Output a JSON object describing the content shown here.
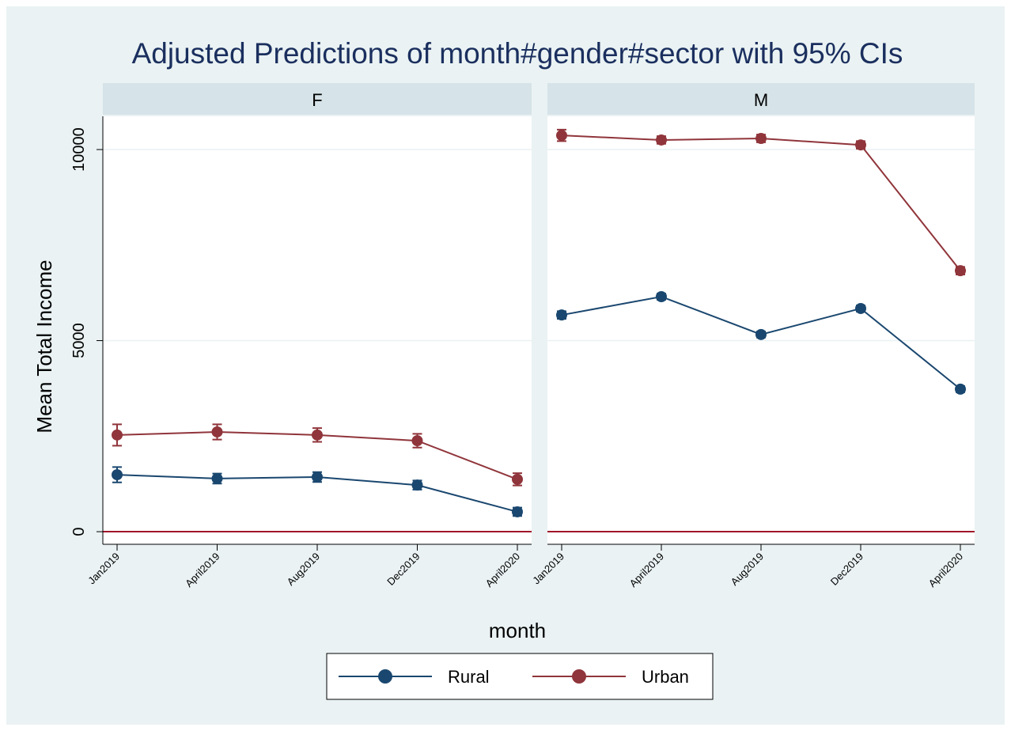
{
  "chart_data": {
    "type": "line",
    "title": "Adjusted Predictions of month#gender#sector with 95% CIs",
    "xlabel": "month",
    "ylabel": "Mean Total Income",
    "panels": [
      "F",
      "M"
    ],
    "categories": [
      "Jan2019",
      "April2019",
      "Aug2019",
      "Dec2019",
      "April2020"
    ],
    "series": [
      {
        "name": "Rural",
        "color": "#1a476f",
        "values": [
          [
            1490,
            1390,
            1430,
            1220,
            520
          ],
          [
            5670,
            6150,
            5160,
            5840,
            3730
          ]
        ],
        "errors": [
          [
            200,
            130,
            130,
            120,
            110
          ],
          [
            100,
            80,
            80,
            80,
            80
          ]
        ]
      },
      {
        "name": "Urban",
        "color": "#90353b",
        "values": [
          [
            2530,
            2610,
            2530,
            2380,
            1370
          ],
          [
            10370,
            10250,
            10290,
            10120,
            6830
          ]
        ],
        "errors": [
          [
            280,
            200,
            180,
            180,
            160
          ],
          [
            150,
            100,
            100,
            100,
            100
          ]
        ]
      }
    ],
    "ylim": [
      -330,
      10870
    ],
    "yticks": [
      0,
      5000,
      10000
    ],
    "grid": true,
    "reference_line": 0,
    "reference_color": "#a0162b",
    "legend": "bottom"
  }
}
